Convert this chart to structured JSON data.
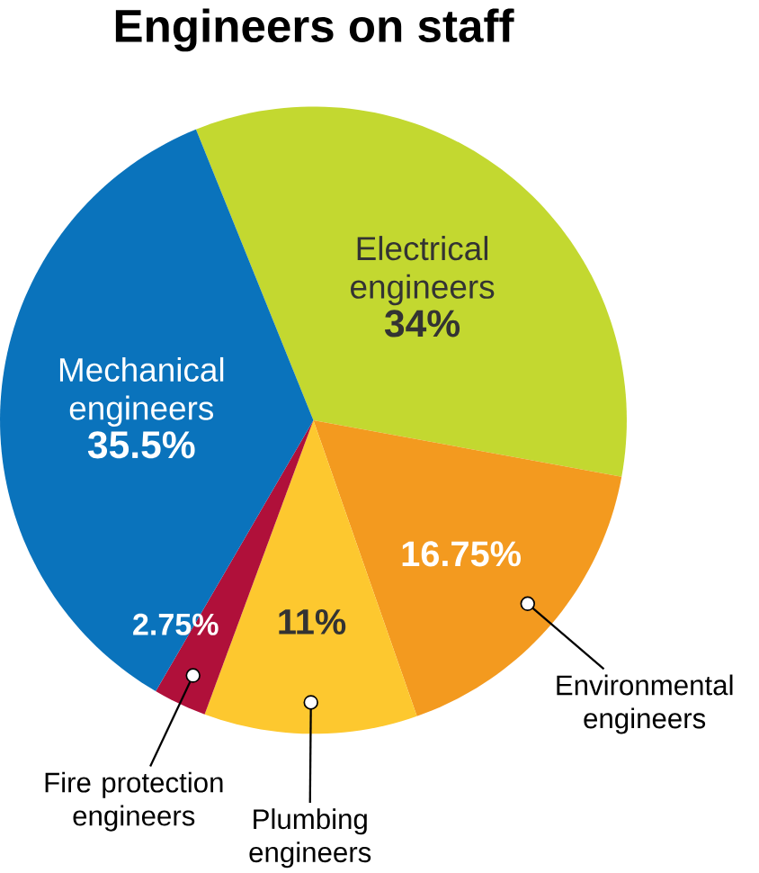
{
  "chart_data": {
    "type": "pie",
    "title": "Engineers on staff",
    "categories": [
      "Electrical engineers",
      "Environmental engineers",
      "Plumbing engineers",
      "Fire protection engineers",
      "Mechanical engineers"
    ],
    "values": [
      34,
      16.75,
      11,
      2.75,
      35.5
    ],
    "colors": [
      "#c3d830",
      "#f39a1f",
      "#fdc82f",
      "#b0103a",
      "#0a73bc"
    ],
    "value_labels": [
      "34%",
      "16.75%",
      "11%",
      "2.75%",
      "35.5%"
    ]
  }
}
